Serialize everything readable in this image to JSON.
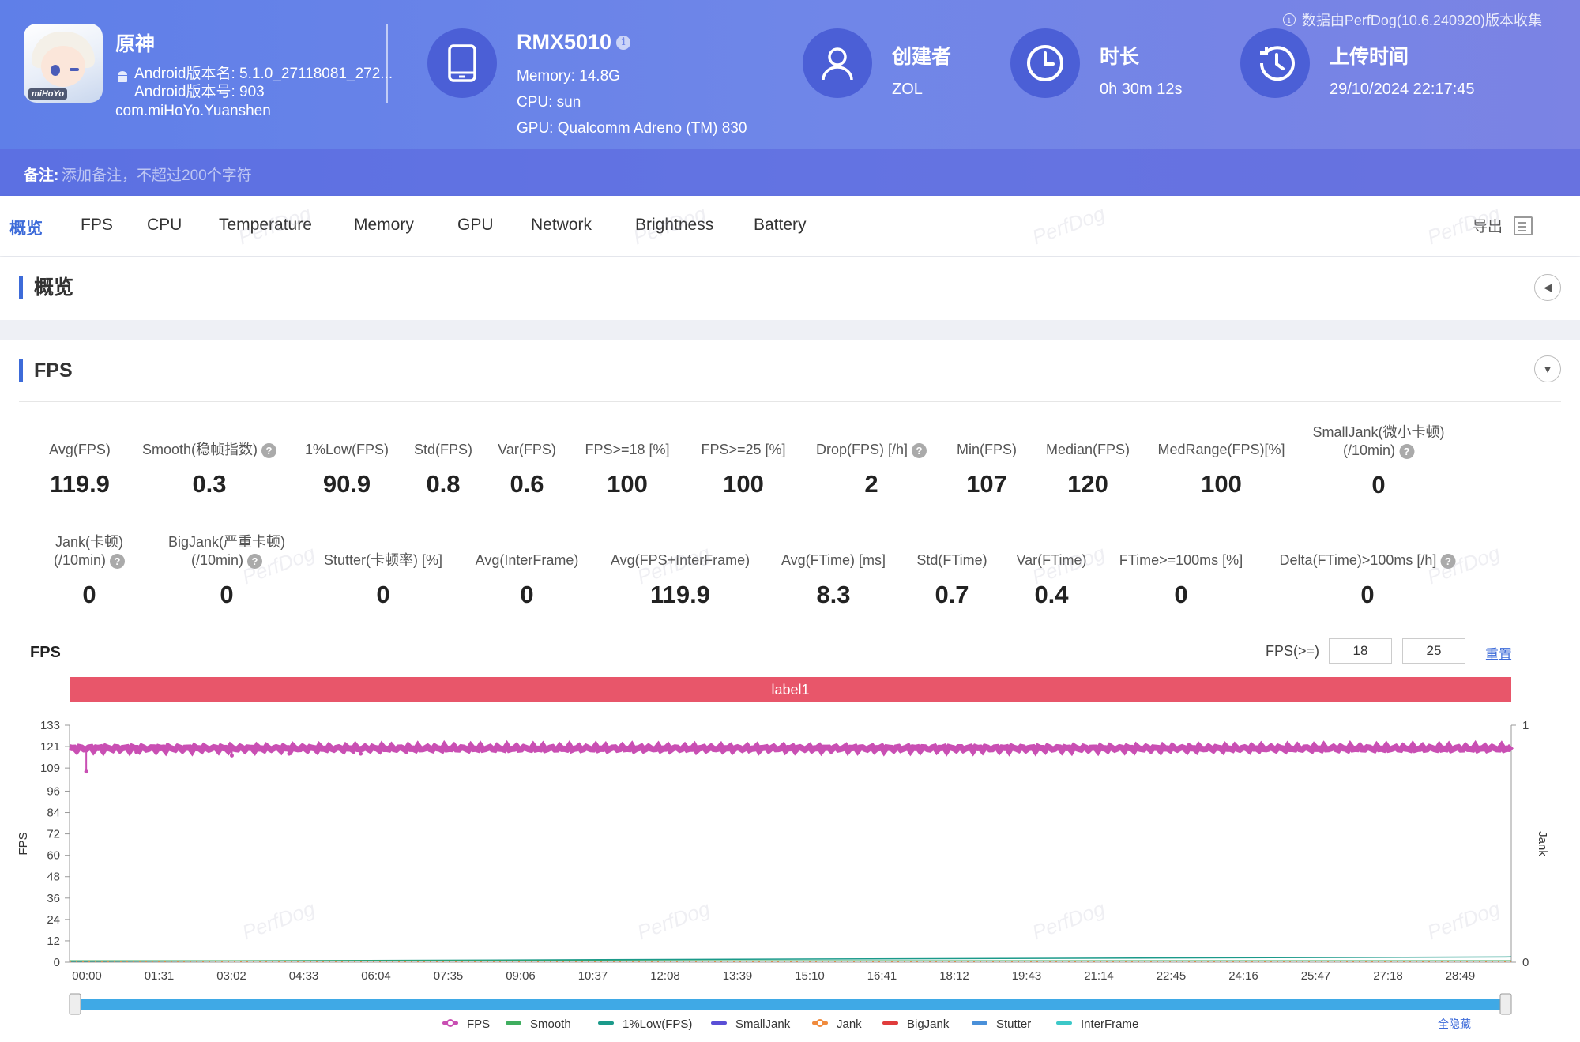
{
  "header": {
    "data_source": "数据由PerfDog(10.6.240920)版本收集",
    "app": {
      "name": "原神",
      "version_name": "Android版本名: 5.1.0_27118081_272...",
      "version_code": "Android版本号: 903",
      "package": "com.miHoYo.Yuanshen",
      "icon_logo": "miHoYo"
    },
    "device": {
      "name": "RMX5010",
      "memory": "Memory: 14.8G",
      "cpu": "CPU: sun",
      "gpu": "GPU: Qualcomm Adreno (TM) 830"
    },
    "creator": {
      "title": "创建者",
      "value": "ZOL"
    },
    "duration": {
      "title": "时长",
      "value": "0h 30m 12s"
    },
    "upload": {
      "title": "上传时间",
      "value": "29/10/2024 22:17:45"
    },
    "note": {
      "label": "备注:",
      "placeholder": "添加备注，不超过200个字符"
    }
  },
  "tabs": [
    "概览",
    "FPS",
    "CPU",
    "Temperature",
    "Memory",
    "GPU",
    "Network",
    "Brightness",
    "Battery"
  ],
  "export_label": "导出",
  "sections": {
    "overview": "概览",
    "fps": "FPS"
  },
  "stats_row1": [
    {
      "label": "Avg(FPS)",
      "value": "119.9"
    },
    {
      "label": "Smooth(稳帧指数)",
      "value": "0.3"
    },
    {
      "label": "1%Low(FPS)",
      "value": "90.9"
    },
    {
      "label": "Std(FPS)",
      "value": "0.8"
    },
    {
      "label": "Var(FPS)",
      "value": "0.6"
    },
    {
      "label": "FPS>=18 [%]",
      "value": "100"
    },
    {
      "label": "FPS>=25 [%]",
      "value": "100"
    },
    {
      "label": "Drop(FPS) [/h]",
      "value": "2"
    },
    {
      "label": "Min(FPS)",
      "value": "107"
    },
    {
      "label": "Median(FPS)",
      "value": "120"
    },
    {
      "label": "MedRange(FPS)[%]",
      "value": "100"
    },
    {
      "label": "SmallJank(微小卡顿)",
      "label2": "(/10min)",
      "value": "0"
    }
  ],
  "stats_row2": [
    {
      "label": "Jank(卡顿)",
      "label2": "(/10min)",
      "value": "0"
    },
    {
      "label": "BigJank(严重卡顿)",
      "label2": "(/10min)",
      "value": "0"
    },
    {
      "label": "Stutter(卡顿率) [%]",
      "value": "0"
    },
    {
      "label": "Avg(InterFrame)",
      "value": "0"
    },
    {
      "label": "Avg(FPS+InterFrame)",
      "value": "119.9"
    },
    {
      "label": "Avg(FTime) [ms]",
      "value": "8.3"
    },
    {
      "label": "Std(FTime)",
      "value": "0.7"
    },
    {
      "label": "Var(FTime)",
      "value": "0.4"
    },
    {
      "label": "FTime>=100ms [%]",
      "value": "0"
    },
    {
      "label": "Delta(FTime)>100ms [/h]",
      "value": "0"
    }
  ],
  "chart_controls": {
    "title": "FPS",
    "threshold_label": "FPS(>=)",
    "threshold_low": "18",
    "threshold_high": "25",
    "reset": "重置",
    "band_label": "label1",
    "hide_all": "全隐藏",
    "watermark": "PerfDog"
  },
  "chart_data": {
    "type": "line",
    "title": "FPS",
    "ylabel": "FPS",
    "y2label": "Jank",
    "y_ticks": [
      0,
      12,
      24,
      36,
      48,
      60,
      72,
      84,
      96,
      109,
      121,
      133
    ],
    "ylim": [
      0,
      133
    ],
    "y2_ticks": [
      0,
      1
    ],
    "x_ticks": [
      "00:00",
      "01:31",
      "03:02",
      "04:33",
      "06:04",
      "07:35",
      "09:06",
      "10:37",
      "12:08",
      "13:39",
      "15:10",
      "16:41",
      "18:12",
      "19:43",
      "21:14",
      "22:45",
      "24:16",
      "25:47",
      "27:18",
      "28:49"
    ],
    "x_range_min": [
      0,
      30.2
    ],
    "series": [
      {
        "name": "FPS",
        "color": "#c94fb3",
        "baseline": 120,
        "dips": [
          [
            0.35,
            107
          ],
          [
            1.4,
            118
          ],
          [
            3.4,
            116
          ],
          [
            4.6,
            117
          ],
          [
            6.1,
            117
          ]
        ]
      },
      {
        "name": "Smooth",
        "color": "#3fae5f"
      },
      {
        "name": "1%Low(FPS)",
        "color": "#1b9a8a",
        "start": 0.5,
        "end": 1.2
      },
      {
        "name": "SmallJank",
        "color": "#5a4fd6"
      },
      {
        "name": "Jank",
        "color": "#f08a3c"
      },
      {
        "name": "BigJank",
        "color": "#e03c3c"
      },
      {
        "name": "Stutter",
        "color": "#4a90d9"
      },
      {
        "name": "InterFrame",
        "color": "#3cc8c8"
      }
    ],
    "grid": false,
    "legend_placement": "bottom"
  }
}
